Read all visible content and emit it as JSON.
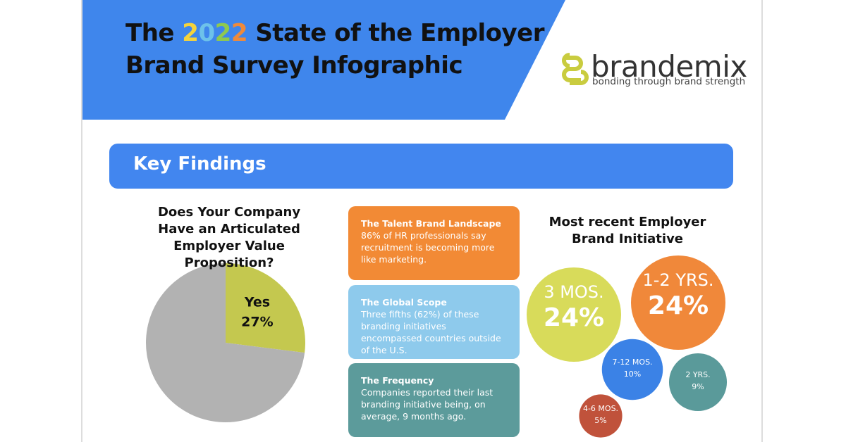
{
  "header": {
    "title_line1": [
      "The ",
      "2",
      "0",
      "2",
      "2",
      " State of the Employer"
    ],
    "title_line2": "Brand Survey Infographic"
  },
  "logo": {
    "name": "brandemix",
    "tagline": "bonding through brand strength"
  },
  "section_title": "Key Findings",
  "cards": [
    {
      "title": "The Talent Brand Landscape",
      "text": "86% of HR professionals say recruitment is becoming more like marketing."
    },
    {
      "title": "The Global Scope",
      "text": "Three fifths (62%) of these branding initiatives encompassed countries outside of the U.S."
    },
    {
      "title": "The Frequency",
      "text": "Companies reported their last branding initiative being, on average, 9 months ago."
    }
  ],
  "chart_data": [
    {
      "type": "pie",
      "title": "Does Your Company Have an Articulated Employer Value Proposition?",
      "categories": [
        "Yes",
        null
      ],
      "values": [
        27,
        73
      ],
      "value_labels": [
        "27%",
        null
      ],
      "colors": [
        "#c4c84f",
        "#b2b2b2"
      ]
    },
    {
      "type": "bubble",
      "title": "Most recent Employer Brand Initiative",
      "categories": [
        "3 MOS.",
        "1-2 YRS.",
        "7-12 MOS.",
        "2 YRS.",
        "4-6 MOS."
      ],
      "values": [
        24,
        24,
        10,
        9,
        5
      ],
      "value_labels": [
        "24%",
        "24%",
        "10%",
        "9%",
        "5%"
      ],
      "colors": [
        "#d8db5a",
        "#f0883a",
        "#3b82e6",
        "#5a9a9a",
        "#c0523b"
      ]
    }
  ]
}
